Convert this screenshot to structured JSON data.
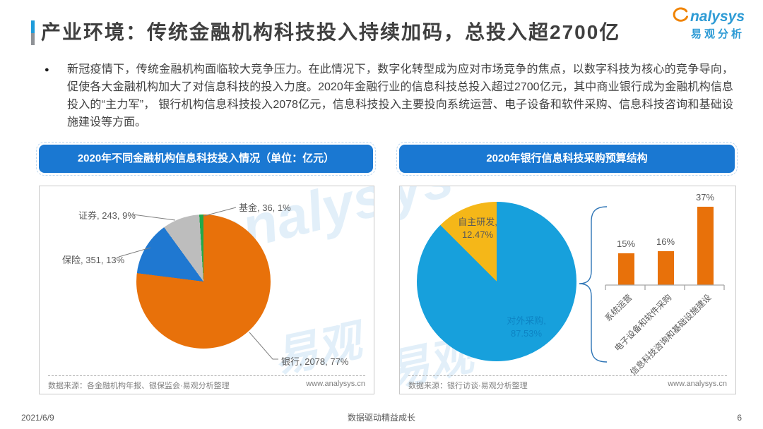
{
  "header": {
    "title": "产业环境：传统金融机构科技投入持续加码，总投入超2700亿",
    "logo": {
      "name": "analysys",
      "name_tail": "nalysys",
      "cn": "易观分析"
    }
  },
  "summary": {
    "bullet": "●",
    "text": "新冠疫情下，传统金融机构面临较大竞争压力。在此情况下，数字化转型成为应对市场竞争的焦点，以数字科技为核心的竞争导向，促使各大金融机构加大了对信息科技的投入力度。2020年金融行业的信息科技总投入超过2700亿元，其中商业银行成为金融机构信息投入的“主力军”， 银行机构信息科技投入2078亿元，信息科技投入主要投向系统运营、电子设备和软件采购、信息科技咨询和基础设施建设等方面。"
  },
  "left_chart": {
    "banner": "2020年不同金融机构信息科技投入情况（单位：亿元）",
    "labels": {
      "zhengquan": "证券, 243, 9%",
      "baoxian": "保险, 351, 13%",
      "jijin": "基金, 36, 1%",
      "yinhang": "银行, 2078, 77%"
    },
    "source": "数据来源：各金融机构年报、银保监会·易观分析整理",
    "website": "www.analysys.cn"
  },
  "right_chart": {
    "banner": "2020年银行信息科技采购预算结构",
    "pie_labels": {
      "self_dev_line1": "自主研发,",
      "self_dev_line2": "12.47%",
      "external_line1": "对外采购,",
      "external_line2": "87.53%"
    },
    "bars": [
      {
        "label": "系统运营",
        "value_label": "15%"
      },
      {
        "label": "电子设备和软件采购",
        "value_label": "16%"
      },
      {
        "label": "信息科技咨询和基础设施建设",
        "value_label": "37%"
      }
    ],
    "source": "数据来源：银行访谈·易观分析整理",
    "website": "www.analysys.cn"
  },
  "watermark": {
    "latin": "analysys",
    "cn": "易观"
  },
  "footer": {
    "date": "2021/6/9",
    "slogan": "数据驱动精益成长",
    "page_number": "6"
  },
  "chart_data": [
    {
      "type": "pie",
      "title": "2020年不同金融机构信息科技投入情况（单位：亿元）",
      "unit": "亿元",
      "slices": [
        {
          "label": "银行",
          "value": 2078,
          "pct": 77,
          "color": "#E8710A"
        },
        {
          "label": "保险",
          "value": 351,
          "pct": 13,
          "color": "#1F78D1"
        },
        {
          "label": "证券",
          "value": 243,
          "pct": 9,
          "color": "#BDBDBD"
        },
        {
          "label": "基金",
          "value": 36,
          "pct": 1,
          "color": "#22A94B"
        }
      ],
      "source": "数据来源：各金融机构年报、银保监会·易观分析整理",
      "website": "www.analysys.cn"
    },
    {
      "type": "pie+bar",
      "title": "2020年银行信息科技采购预算结构",
      "pie": {
        "slices": [
          {
            "label": "对外采购",
            "pct": 87.53,
            "color": "#17A0DC"
          },
          {
            "label": "自主研发",
            "pct": 12.47,
            "color": "#F5B718"
          }
        ]
      },
      "bar": {
        "type": "bar",
        "categories": [
          "系统运营",
          "电子设备和软件采购",
          "信息科技咨询和基础设施建设"
        ],
        "values": [
          15,
          16,
          37
        ],
        "unit": "%",
        "color": "#E8710A",
        "ylim": [
          0,
          40
        ]
      },
      "source": "数据来源：银行访谈·易观分析整理",
      "website": "www.analysys.cn"
    }
  ]
}
